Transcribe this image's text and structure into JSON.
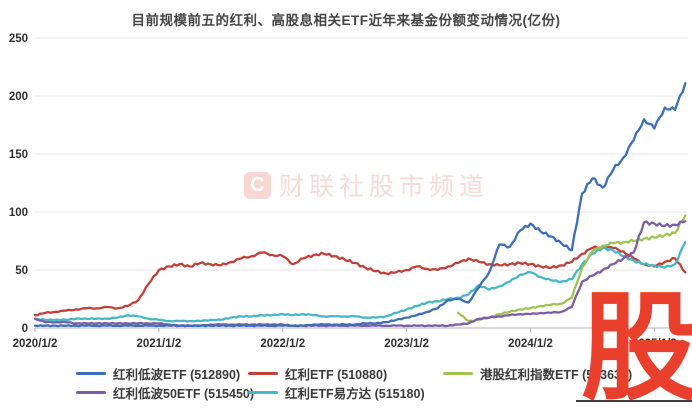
{
  "title": "目前规模前五的红利、高股息相关ETF近年来基金份额变动情况(亿份)",
  "center_watermark": {
    "logo": "C",
    "text": "财联社股市频道"
  },
  "corner_watermark": "股",
  "colors": {
    "blue": "#3e6fb6",
    "red": "#c0403a",
    "green": "#9dc350",
    "purple": "#7b5ea7",
    "cyan": "#49b6c8",
    "grid": "#e7e7e7",
    "axis": "#b0b0b0",
    "tick_text": "#2f2f2f",
    "watermark_red": "#e8402c"
  },
  "chart_data": {
    "type": "line",
    "title": "目前规模前五的红利、高股息相关ETF近年来基金份额变动情况(亿份)",
    "xlabel": "",
    "ylabel": "",
    "ylim": [
      0,
      250
    ],
    "y_ticks": [
      0,
      50,
      100,
      150,
      200,
      250
    ],
    "grid": "horizontal-only",
    "legend_position": "bottom",
    "x_is_monthly_from": "2020-01",
    "x_tick_labels": [
      "2020/1/2",
      "2021/1/2",
      "2022/1/2",
      "2023/1/2",
      "2024/1/2",
      "2025/1/2"
    ],
    "x_tick_month_index": [
      0,
      12,
      24,
      36,
      48,
      60
    ],
    "series": [
      {
        "label": "红利低波ETF (512890)",
        "color": "#3e6fb6",
        "values": [
          2,
          2,
          2,
          2,
          2,
          2,
          2,
          2,
          2,
          2,
          2,
          2,
          2,
          2,
          2,
          2,
          2,
          2,
          2,
          2,
          2,
          2,
          2,
          2,
          2,
          2,
          2,
          3,
          3,
          3,
          3,
          3,
          4,
          4,
          5,
          7,
          9,
          11,
          14,
          17,
          24,
          25,
          22,
          35,
          48,
          72,
          70,
          84,
          90,
          83,
          79,
          73,
          67,
          116,
          129,
          121,
          136,
          147,
          162,
          180,
          172,
          190,
          188,
          211
        ]
      },
      {
        "label": "红利ETF (510880)",
        "color": "#c0403a",
        "values": [
          11,
          13,
          14,
          15,
          16,
          17,
          17,
          18,
          17,
          19,
          24,
          38,
          50,
          53,
          55,
          53,
          56,
          55,
          54,
          57,
          60,
          62,
          65,
          63,
          62,
          55,
          60,
          63,
          64,
          62,
          59,
          56,
          52,
          49,
          47,
          48,
          50,
          53,
          51,
          50,
          53,
          56,
          60,
          57,
          55,
          54,
          55,
          56,
          55,
          53,
          52,
          54,
          57,
          64,
          69,
          70,
          69,
          66,
          60,
          55,
          53,
          57,
          60,
          48
        ]
      },
      {
        "label": "港股红利指数ETF (513630)",
        "color": "#9dc350",
        "values": [
          null,
          null,
          null,
          null,
          null,
          null,
          null,
          null,
          null,
          null,
          null,
          null,
          null,
          null,
          null,
          null,
          null,
          null,
          null,
          null,
          null,
          null,
          null,
          null,
          null,
          null,
          null,
          null,
          null,
          null,
          null,
          null,
          null,
          null,
          null,
          null,
          null,
          null,
          null,
          null,
          null,
          13,
          6,
          7,
          9,
          12,
          14,
          16,
          17,
          19,
          20,
          21,
          26,
          52,
          66,
          71,
          73,
          74,
          75,
          77,
          78,
          80,
          82,
          97
        ]
      },
      {
        "label": "红利低波50ETF (515450)",
        "color": "#7b5ea7",
        "values": [
          8,
          5,
          5,
          5,
          4,
          4,
          4,
          4,
          4,
          4,
          4,
          4,
          4,
          3,
          2,
          2,
          2,
          3,
          3,
          3,
          3,
          3,
          3,
          3,
          3,
          2,
          2,
          2,
          2,
          2,
          2,
          2,
          2,
          2,
          2,
          2,
          2,
          2,
          2,
          2,
          2,
          3,
          4,
          8,
          9,
          10,
          11,
          12,
          12,
          13,
          13,
          14,
          18,
          40,
          45,
          50,
          55,
          60,
          65,
          91,
          90,
          88,
          89,
          92
        ]
      },
      {
        "label": "红利ETF易方达 (515180)",
        "color": "#49b6c8",
        "values": [
          8,
          7,
          7,
          7,
          8,
          8,
          8,
          8,
          9,
          11,
          10,
          8,
          7,
          6,
          6,
          6,
          6,
          7,
          7,
          9,
          10,
          10,
          11,
          11,
          12,
          11,
          12,
          11,
          10,
          10,
          10,
          10,
          9,
          9,
          10,
          13,
          16,
          19,
          22,
          23,
          25,
          26,
          29,
          37,
          33,
          36,
          40,
          46,
          48,
          44,
          41,
          40,
          42,
          55,
          64,
          69,
          67,
          62,
          58,
          55,
          54,
          52,
          55,
          74
        ]
      }
    ]
  }
}
